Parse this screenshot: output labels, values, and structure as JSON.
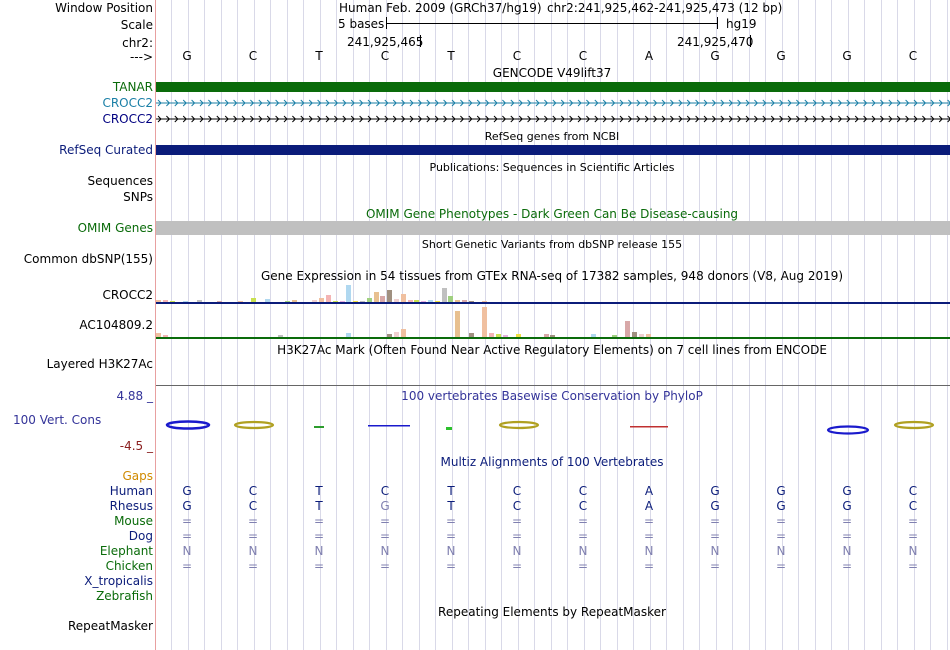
{
  "header": {
    "window_position_label": "Window Position",
    "scale_label": "Scale",
    "chrom_label": "chr2:",
    "arrow_label": "--->",
    "assembly_text": "Human Feb. 2009 (GRCh37/hg19)",
    "position_text": "chr2:241,925,462-241,925,473 (12 bp)",
    "scale_bases": "5 bases",
    "scale_db": "hg19",
    "coord_left": "241,925,465",
    "coord_right": "241,925,470",
    "bases": [
      "G",
      "C",
      "T",
      "C",
      "T",
      "C",
      "C",
      "A",
      "G",
      "G",
      "G",
      "C"
    ]
  },
  "tracks": {
    "gencode": {
      "title": "GENCODE V49lift37",
      "items": [
        "TANAR",
        "CROCC2",
        "CROCC2"
      ],
      "colors": [
        "#0a6b0a",
        "#1a7fa6",
        "#000080"
      ]
    },
    "refseq": {
      "title": "RefSeq genes from NCBI",
      "label": "RefSeq Curated",
      "color": "#0b1c7a"
    },
    "publications": {
      "title": "Publications: Sequences in Scientific Articles",
      "labels": [
        "Sequences",
        "SNPs"
      ]
    },
    "omim": {
      "title": "OMIM Gene Phenotypes - Dark Green Can Be Disease-causing",
      "label": "OMIM Genes",
      "color": "#c0c0c0",
      "label_color": "#0a6b0a"
    },
    "dbsnp": {
      "title": "Short Genetic Variants from dbSNP release 155",
      "label": "Common dbSNP(155)"
    },
    "gtex": {
      "title": "Gene Expression in 54 tissues from GTEx RNA-seq of 17382 samples, 948 donors (V8, Aug 2019)",
      "labels": [
        "CROCC2",
        "AC104809.2"
      ]
    },
    "h3k27ac": {
      "title": "H3K27Ac Mark (Often Found Near Active Regulatory Elements) on 7 cell lines from ENCODE",
      "label": "Layered H3K27Ac"
    },
    "conservation": {
      "title": "100 vertebrates Basewise Conservation by PhyloP",
      "label": "100 Vert. Cons",
      "max": "4.88 _",
      "min": "-4.5 _"
    },
    "multiz": {
      "title": "Multiz Alignments of 100 Vertebrates",
      "gaps_label": "Gaps",
      "species": [
        {
          "name": "Human",
          "seq": [
            "G",
            "C",
            "T",
            "C",
            "T",
            "C",
            "C",
            "A",
            "G",
            "G",
            "G",
            "C"
          ]
        },
        {
          "name": "Rhesus",
          "seq": [
            "G",
            "C",
            "T",
            "G",
            "T",
            "C",
            "C",
            "A",
            "G",
            "G",
            "G",
            "C"
          ]
        },
        {
          "name": "Mouse",
          "seq": [
            "=",
            "=",
            "=",
            "=",
            "=",
            "=",
            "=",
            "=",
            "=",
            "=",
            "=",
            "="
          ]
        },
        {
          "name": "Dog",
          "seq": [
            "=",
            "=",
            "=",
            "=",
            "=",
            "=",
            "=",
            "=",
            "=",
            "=",
            "=",
            "="
          ]
        },
        {
          "name": "Elephant",
          "seq": [
            "N",
            "N",
            "N",
            "N",
            "N",
            "N",
            "N",
            "N",
            "N",
            "N",
            "N",
            "N"
          ]
        },
        {
          "name": "Chicken",
          "seq": [
            "=",
            "=",
            "=",
            "=",
            "=",
            "=",
            "=",
            "=",
            "=",
            "=",
            "=",
            "="
          ]
        },
        {
          "name": "X_tropicalis",
          "seq": []
        },
        {
          "name": "Zebrafish",
          "seq": []
        }
      ]
    },
    "repeatmasker": {
      "title": "Repeating Elements by RepeatMasker",
      "label": "RepeatMasker"
    }
  }
}
